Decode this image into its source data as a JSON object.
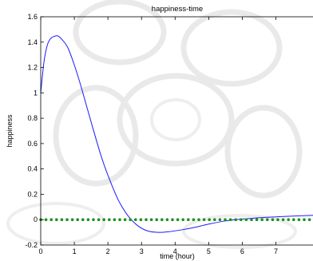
{
  "chart_data": {
    "type": "line",
    "title": "happiness-time",
    "xlabel": "time (hour)",
    "ylabel": "happiness",
    "xlim": [
      0,
      8.2
    ],
    "ylim": [
      -0.2,
      1.6
    ],
    "xticks": [
      "0",
      "1",
      "2",
      "3",
      "4",
      "5",
      "6",
      "7"
    ],
    "yticks": [
      "-0.2",
      "0",
      "0.2",
      "0.4",
      "0.6",
      "0.8",
      "1",
      "1.2",
      "1.4",
      "1.6"
    ],
    "grid": false,
    "series": [
      {
        "style": "solid line",
        "color": "#1a1aff",
        "x": [
          0,
          0.1,
          0.2,
          0.3,
          0.4,
          0.5,
          0.6,
          0.8,
          1.0,
          1.2,
          1.5,
          1.8,
          2.0,
          2.3,
          2.6,
          2.9,
          3.2,
          3.5,
          3.8,
          4.2,
          4.6,
          5.0,
          5.5,
          6.0,
          6.5,
          7.0,
          7.5,
          8.2
        ],
        "y": [
          1.0,
          1.25,
          1.38,
          1.43,
          1.445,
          1.45,
          1.43,
          1.36,
          1.22,
          1.05,
          0.77,
          0.5,
          0.35,
          0.16,
          0.03,
          -0.05,
          -0.09,
          -0.1,
          -0.095,
          -0.08,
          -0.06,
          -0.035,
          -0.01,
          0.005,
          0.015,
          0.022,
          0.028,
          0.035
        ]
      },
      {
        "style": "dotted markers",
        "color": "#1f8f1f",
        "x": [
          0,
          8.2
        ],
        "y": [
          0,
          0
        ]
      }
    ]
  }
}
